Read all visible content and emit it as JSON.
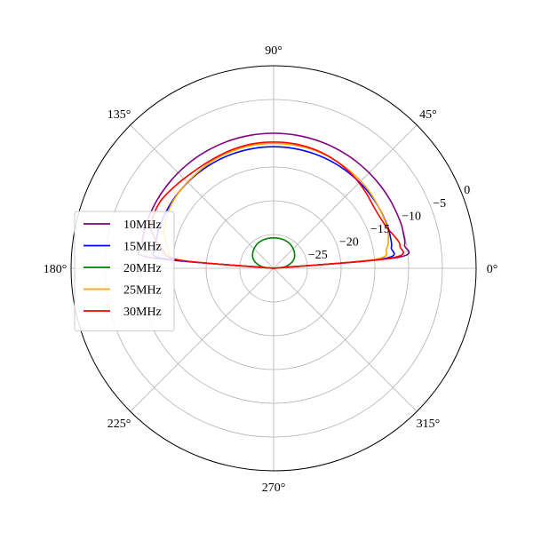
{
  "chart_data": {
    "type": "polar-line",
    "title": "",
    "angle_unit": "degrees",
    "r_unit": "dB",
    "r_range": [
      -30,
      0
    ],
    "angle_ticks": [
      "0°",
      "45°",
      "90°",
      "135°",
      "180°",
      "225°",
      "270°",
      "315°"
    ],
    "angle_tick_values": [
      0,
      45,
      90,
      135,
      180,
      225,
      270,
      315
    ],
    "radial_ticks": [
      "−25",
      "−20",
      "−15",
      "−10",
      "−5",
      "0"
    ],
    "radial_tick_values": [
      -25,
      -20,
      -15,
      -10,
      -5,
      0
    ],
    "radial_label_angle_deg": 22.5,
    "grid": true,
    "legend_position": "center-left",
    "colors": {
      "grid": "#b0b0b0",
      "frame": "#000000"
    },
    "series": [
      {
        "name": "10MHz",
        "color": "#800080",
        "theta": [
          0,
          5,
          10,
          15,
          20,
          30,
          40,
          50,
          60,
          70,
          80,
          90,
          100,
          110,
          120,
          130,
          140,
          150,
          160,
          165,
          170,
          175,
          180
        ],
        "r": [
          -30,
          -11.6,
          -10.3,
          -10.1,
          -10.0,
          -10.0,
          -10.0,
          -10.0,
          -10.0,
          -10.0,
          -10.0,
          -10.0,
          -10.0,
          -10.0,
          -10.0,
          -10.0,
          -10.0,
          -10.0,
          -10.0,
          -10.1,
          -10.3,
          -11.6,
          -30
        ]
      },
      {
        "name": "15MHz",
        "color": "#0000ff",
        "theta": [
          0,
          5,
          10,
          15,
          20,
          30,
          40,
          50,
          60,
          70,
          80,
          90,
          100,
          110,
          120,
          130,
          140,
          150,
          160,
          165,
          170,
          175,
          180
        ],
        "r": [
          -30,
          -13.7,
          -12.3,
          -12.1,
          -12.0,
          -12.0,
          -12.0,
          -12.0,
          -12.0,
          -12.0,
          -12.0,
          -12.0,
          -12.0,
          -12.0,
          -12.0,
          -12.0,
          -12.0,
          -12.0,
          -12.0,
          -12.1,
          -12.3,
          -13.7,
          -30
        ]
      },
      {
        "name": "20MHz",
        "color": "#008000",
        "theta": [
          0,
          5,
          10,
          20,
          30,
          45,
          60,
          75,
          90,
          105,
          120,
          135,
          150,
          160,
          170,
          175,
          180
        ],
        "r": [
          -30,
          -28.8,
          -28.0,
          -27.0,
          -26.4,
          -25.9,
          -25.6,
          -25.5,
          -25.5,
          -25.5,
          -25.6,
          -25.9,
          -26.4,
          -27.0,
          -28.0,
          -28.8,
          -30
        ]
      },
      {
        "name": "25MHz",
        "color": "#ffa500",
        "theta": [
          0,
          5,
          10,
          15,
          20,
          30,
          40,
          50,
          60,
          70,
          80,
          90,
          100,
          110,
          120,
          130,
          140,
          150,
          160,
          165,
          170,
          175,
          180
        ],
        "r": [
          -30,
          -15.0,
          -13.0,
          -12.4,
          -12.1,
          -12.0,
          -11.8,
          -11.7,
          -11.6,
          -11.5,
          -11.5,
          -11.5,
          -11.5,
          -11.6,
          -11.7,
          -11.9,
          -12.0,
          -12.2,
          -12.8,
          -13.4,
          -14.2,
          -16.0,
          -30
        ]
      },
      {
        "name": "30MHz",
        "color": "#ff0000",
        "theta": [
          0,
          5,
          10,
          15,
          20,
          30,
          40,
          50,
          60,
          70,
          80,
          90,
          100,
          110,
          120,
          130,
          140,
          150,
          160,
          165,
          170,
          175,
          180
        ],
        "r": [
          -30,
          -12.5,
          -11.0,
          -11.5,
          -12.2,
          -12.6,
          -12.3,
          -11.9,
          -11.6,
          -11.4,
          -11.3,
          -11.3,
          -11.3,
          -11.4,
          -11.5,
          -11.4,
          -11.0,
          -10.5,
          -10.7,
          -11.6,
          -13.2,
          -16.0,
          -30
        ]
      }
    ]
  }
}
